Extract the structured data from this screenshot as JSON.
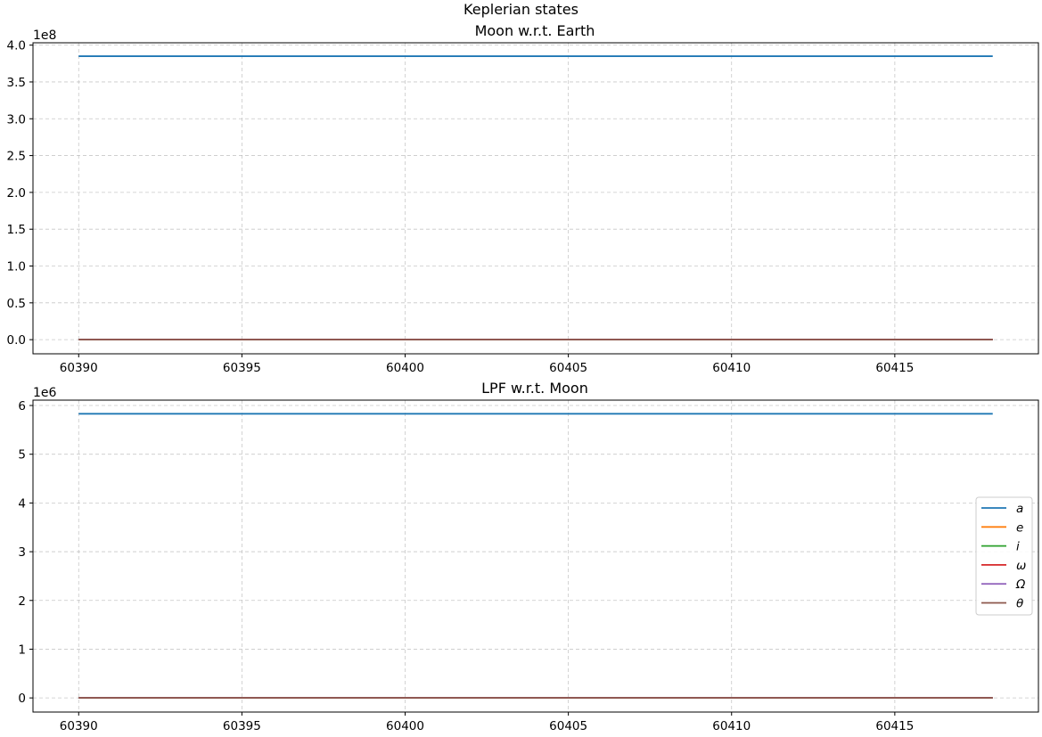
{
  "figure": {
    "suptitle": "Keplerian states"
  },
  "colors": {
    "a": "#1f77b4",
    "e": "#ff7f0e",
    "i": "#2ca02c",
    "omega": "#d62728",
    "Omega": "#9467bd",
    "theta": "#8c564b",
    "grid": "#b0b0b0"
  },
  "legend": {
    "placement": "center-right (lower subplot)",
    "items": [
      "a",
      "e",
      "i",
      "ω",
      "Ω",
      "θ"
    ]
  },
  "chart_data": [
    {
      "type": "line",
      "title": "Moon w.r.t. Earth",
      "xlabel": "",
      "ylabel": "",
      "y_offset_label": "1e8",
      "xlim": [
        60388.6,
        60419.4
      ],
      "ylim": [
        -0.192,
        4.032
      ],
      "grid": true,
      "x_ticks": [
        60390,
        60395,
        60400,
        60405,
        60410,
        60415
      ],
      "x_tick_labels": [
        "60390",
        "60395",
        "60400",
        "60405",
        "60410",
        "60415"
      ],
      "y_ticks": [
        0.0,
        0.5,
        1.0,
        1.5,
        2.0,
        2.5,
        3.0,
        3.5,
        4.0
      ],
      "y_tick_labels": [
        "0.0",
        "0.5",
        "1.0",
        "1.5",
        "2.0",
        "2.5",
        "3.0",
        "3.5",
        "4.0"
      ],
      "x": [
        60390,
        60418
      ],
      "series": [
        {
          "name": "a",
          "color": "#1f77b4",
          "values": [
            3.85,
            3.85
          ]
        },
        {
          "name": "e",
          "color": "#ff7f0e",
          "values": [
            0.0,
            0.0
          ]
        },
        {
          "name": "i",
          "color": "#2ca02c",
          "values": [
            0.0,
            0.0
          ]
        },
        {
          "name": "ω",
          "color": "#d62728",
          "values": [
            0.0,
            0.0
          ]
        },
        {
          "name": "Ω",
          "color": "#9467bd",
          "values": [
            0.0,
            0.0
          ]
        },
        {
          "name": "θ",
          "color": "#8c564b",
          "values": [
            0.0,
            0.0
          ]
        }
      ]
    },
    {
      "type": "line",
      "title": "LPF w.r.t. Moon",
      "xlabel": "",
      "ylabel": "",
      "y_offset_label": "1e6",
      "xlim": [
        60388.6,
        60419.4
      ],
      "ylim": [
        -0.29,
        6.11
      ],
      "grid": true,
      "x_ticks": [
        60390,
        60395,
        60400,
        60405,
        60410,
        60415
      ],
      "x_tick_labels": [
        "60390",
        "60395",
        "60400",
        "60405",
        "60410",
        "60415"
      ],
      "y_ticks": [
        0,
        1,
        2,
        3,
        4,
        5,
        6
      ],
      "y_tick_labels": [
        "0",
        "1",
        "2",
        "3",
        "4",
        "5",
        "6"
      ],
      "x": [
        60390,
        60418
      ],
      "series": [
        {
          "name": "a",
          "color": "#1f77b4",
          "values": [
            5.83,
            5.83
          ]
        },
        {
          "name": "e",
          "color": "#ff7f0e",
          "values": [
            0.0,
            0.0
          ]
        },
        {
          "name": "i",
          "color": "#2ca02c",
          "values": [
            0.0,
            0.0
          ]
        },
        {
          "name": "ω",
          "color": "#d62728",
          "values": [
            0.0,
            0.0
          ]
        },
        {
          "name": "Ω",
          "color": "#9467bd",
          "values": [
            0.0,
            0.0
          ]
        },
        {
          "name": "θ",
          "color": "#8c564b",
          "values": [
            0.0,
            0.0
          ]
        }
      ]
    }
  ]
}
